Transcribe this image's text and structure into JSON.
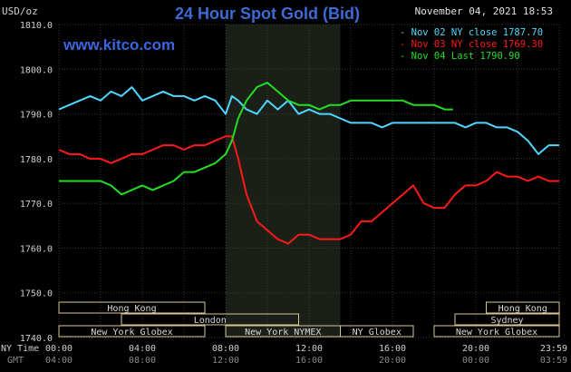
{
  "title": "24 Hour Spot Gold (Bid)",
  "website": "www.kitco.com",
  "timestamp": "November 04, 2021 18:53",
  "units_label": "USD/oz",
  "colors": {
    "background": "#000000",
    "shade": "#1a1f17",
    "grid": "#3a3a3a",
    "title": "#3d6bd6",
    "website": "#3a66e0",
    "nov02": "#4fd6ff",
    "nov03": "#ff1a1a",
    "nov04": "#22dd22",
    "market_box": "#d8c690",
    "axis_text": "#cfcfcf"
  },
  "legend": [
    {
      "text": "Nov 02 NY close 1787.70",
      "color_key": "nov02"
    },
    {
      "text": "Nov 03 NY close 1769.30",
      "color_key": "nov03"
    },
    {
      "text": "Nov 04 Last 1790.90",
      "color_key": "nov04"
    }
  ],
  "markets": [
    {
      "label": "Hong Kong",
      "start": 0,
      "end": 7.0
    },
    {
      "label": "London",
      "start": 3.0,
      "end": 11.5
    },
    {
      "label": "New York Globex",
      "start": 0,
      "end": 7.0
    },
    {
      "label": "New York NYMEX",
      "start": 8.0,
      "end": 13.5
    },
    {
      "label": "NY Globex",
      "start": 13.5,
      "end": 17.0
    },
    {
      "label": "Hong Kong",
      "start": 20.5,
      "end": 24.0
    },
    {
      "label": "Sydney",
      "start": 19.0,
      "end": 24.0
    },
    {
      "label": "New York Globex",
      "start": 18.0,
      "end": 24.0
    }
  ],
  "x_axis": {
    "row1_label": "NY Time",
    "row2_label": "GMT",
    "ny_ticks": [
      "00:00",
      "04:00",
      "08:00",
      "12:00",
      "16:00",
      "20:00",
      "23:59"
    ],
    "gmt_ticks": [
      "04:00",
      "08:00",
      "12:00",
      "16:00",
      "20:00",
      "00:00",
      "03:59"
    ]
  },
  "chart_data": {
    "type": "line",
    "title": "24 Hour Spot Gold (Bid)",
    "ylabel": "USD/oz",
    "ylim": [
      1740,
      1810
    ],
    "yticks": [
      "1810.0",
      "1800.0",
      "1790.0",
      "1780.0",
      "1770.0",
      "1760.0",
      "1750.0",
      "1740.0"
    ],
    "xlim_hours": [
      0,
      24
    ],
    "shaded_region_hours": [
      8,
      13.5
    ],
    "series": [
      {
        "name": "Nov 02 NY close 1787.70",
        "color_key": "nov02",
        "x": [
          0,
          0.5,
          1.0,
          1.5,
          2.0,
          2.5,
          3.0,
          3.5,
          4.0,
          4.5,
          5.0,
          5.5,
          6.0,
          6.5,
          7.0,
          7.5,
          8.0,
          8.3,
          8.6,
          9.0,
          9.5,
          10.0,
          10.5,
          11.0,
          11.5,
          12.0,
          12.5,
          13.0,
          13.5,
          14.0,
          14.5,
          15.0,
          15.5,
          16.0,
          16.5,
          17.0,
          17.5,
          18.0,
          18.5,
          19.0,
          19.5,
          20.0,
          20.5,
          21.0,
          21.5,
          22.0,
          22.5,
          23.0,
          23.5,
          24.0
        ],
        "values": [
          1791,
          1792,
          1793,
          1794,
          1793,
          1795,
          1794,
          1796,
          1793,
          1794,
          1795,
          1794,
          1794,
          1793,
          1794,
          1793,
          1790,
          1794,
          1793,
          1791,
          1790,
          1793,
          1791,
          1793,
          1790,
          1791,
          1790,
          1790,
          1789,
          1788,
          1788,
          1788,
          1787,
          1788,
          1788,
          1788,
          1788,
          1788,
          1788,
          1788,
          1787,
          1788,
          1788,
          1787,
          1787,
          1786,
          1784,
          1781,
          1783,
          1783
        ]
      },
      {
        "name": "Nov 03 NY close 1769.30",
        "color_key": "nov03",
        "x": [
          0,
          0.5,
          1.0,
          1.5,
          2.0,
          2.5,
          3.0,
          3.5,
          4.0,
          4.5,
          5.0,
          5.5,
          6.0,
          6.5,
          7.0,
          7.5,
          8.0,
          8.3,
          8.6,
          9.0,
          9.5,
          10.0,
          10.5,
          11.0,
          11.5,
          12.0,
          12.5,
          13.0,
          13.5,
          14.0,
          14.5,
          15.0,
          15.5,
          16.0,
          16.5,
          17.0,
          17.5,
          18.0,
          18.5,
          19.0,
          19.5,
          20.0,
          20.5,
          21.0,
          21.5,
          22.0,
          22.5,
          23.0,
          23.5,
          24.0
        ],
        "values": [
          1782,
          1781,
          1781,
          1780,
          1780,
          1779,
          1780,
          1781,
          1781,
          1782,
          1783,
          1783,
          1782,
          1783,
          1783,
          1784,
          1785,
          1785,
          1780,
          1772,
          1766,
          1764,
          1762,
          1761,
          1763,
          1763,
          1762,
          1762,
          1762,
          1763,
          1766,
          1766,
          1768,
          1770,
          1772,
          1774,
          1770,
          1769,
          1769,
          1772,
          1774,
          1774,
          1775,
          1777,
          1776,
          1776,
          1775,
          1776,
          1775,
          1775
        ]
      },
      {
        "name": "Nov 04 Last 1790.90",
        "color_key": "nov04",
        "x": [
          0,
          0.5,
          1.0,
          1.5,
          2.0,
          2.5,
          3.0,
          3.5,
          4.0,
          4.5,
          5.0,
          5.5,
          6.0,
          6.5,
          7.0,
          7.5,
          8.0,
          8.3,
          8.6,
          9.0,
          9.5,
          10.0,
          10.5,
          11.0,
          11.5,
          12.0,
          12.5,
          13.0,
          13.5,
          14.0,
          14.5,
          15.0,
          15.5,
          16.0,
          16.5,
          17.0,
          17.5,
          18.0,
          18.5,
          18.9
        ],
        "values": [
          1775,
          1775,
          1775,
          1775,
          1775,
          1774,
          1772,
          1773,
          1774,
          1773,
          1774,
          1775,
          1777,
          1777,
          1778,
          1779,
          1781,
          1784,
          1789,
          1793,
          1796,
          1797,
          1795,
          1793,
          1792,
          1792,
          1791,
          1792,
          1792,
          1793,
          1793,
          1793,
          1793,
          1793,
          1793,
          1792,
          1792,
          1792,
          1791,
          1791
        ]
      }
    ],
    "grid": true,
    "legend_position": "top-right"
  }
}
